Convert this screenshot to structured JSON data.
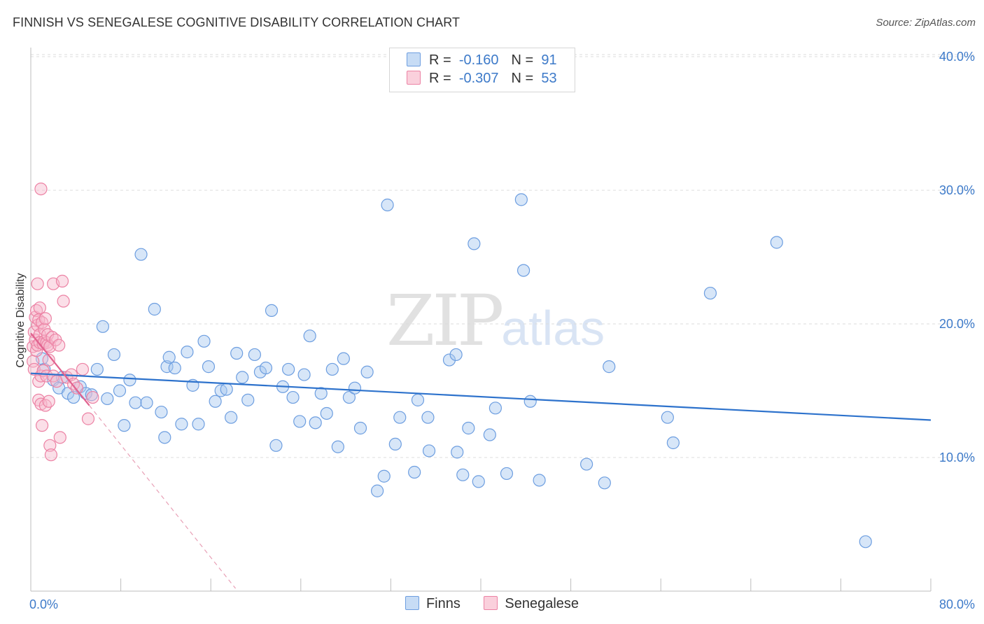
{
  "header": {
    "title": "FINNISH VS SENEGALESE COGNITIVE DISABILITY CORRELATION CHART",
    "source": "Source: ZipAtlas.com"
  },
  "watermark": {
    "zip": "ZIP",
    "atlas": "atlas"
  },
  "legend": {
    "rows": [
      {
        "r_label": "R =",
        "r_value": "-0.160",
        "n_label": "N =",
        "n_value": "91",
        "color": "#a7c8f0",
        "stroke": "#6d9ee0"
      },
      {
        "r_label": "R =",
        "r_value": "-0.307",
        "n_label": "N =",
        "n_value": "53",
        "color": "#f7b8cb",
        "stroke": "#ec82a4"
      }
    ]
  },
  "bottom_legend": {
    "items": [
      "Finns",
      "Senegalese"
    ]
  },
  "chart_data": {
    "type": "scatter",
    "title": "FINNISH VS SENEGALESE COGNITIVE DISABILITY CORRELATION CHART",
    "xlabel": "",
    "ylabel": "Cognitive Disability",
    "xlim": [
      0,
      80
    ],
    "ylim": [
      0,
      42
    ],
    "x_tick_labels": [
      "0.0%",
      "80.0%"
    ],
    "y_ticks": [
      10,
      20,
      30,
      40
    ],
    "y_tick_labels": [
      "10.0%",
      "20.0%",
      "30.0%",
      "40.0%"
    ],
    "grid": true,
    "series": [
      {
        "name": "Finns",
        "color": "#a7c8f0",
        "stroke": "#6d9ee0",
        "trend": {
          "x": [
            0,
            80
          ],
          "y": [
            16.3,
            12.8
          ],
          "color": "#2d72cc"
        },
        "points": [
          [
            1.0,
            17.4
          ],
          [
            1.2,
            16.6
          ],
          [
            2.0,
            15.8
          ],
          [
            2.5,
            15.2
          ],
          [
            2.8,
            16.0
          ],
          [
            3.3,
            14.8
          ],
          [
            3.8,
            14.5
          ],
          [
            4.4,
            15.3
          ],
          [
            4.9,
            14.8
          ],
          [
            5.4,
            14.7
          ],
          [
            5.9,
            16.6
          ],
          [
            6.4,
            19.8
          ],
          [
            6.8,
            14.4
          ],
          [
            7.4,
            17.7
          ],
          [
            7.9,
            15.0
          ],
          [
            8.3,
            12.4
          ],
          [
            8.8,
            15.8
          ],
          [
            9.3,
            14.1
          ],
          [
            9.8,
            25.2
          ],
          [
            10.3,
            14.1
          ],
          [
            11.0,
            21.1
          ],
          [
            11.6,
            13.4
          ],
          [
            11.9,
            11.5
          ],
          [
            12.1,
            16.8
          ],
          [
            12.3,
            17.5
          ],
          [
            12.8,
            16.7
          ],
          [
            13.4,
            12.5
          ],
          [
            13.9,
            17.9
          ],
          [
            14.4,
            15.4
          ],
          [
            14.9,
            12.5
          ],
          [
            15.4,
            18.7
          ],
          [
            15.8,
            16.8
          ],
          [
            16.4,
            14.2
          ],
          [
            16.9,
            15.0
          ],
          [
            17.4,
            15.1
          ],
          [
            17.8,
            13.0
          ],
          [
            18.3,
            17.8
          ],
          [
            18.8,
            16.0
          ],
          [
            19.3,
            14.3
          ],
          [
            19.9,
            17.7
          ],
          [
            20.4,
            16.4
          ],
          [
            20.9,
            16.7
          ],
          [
            21.4,
            21.0
          ],
          [
            21.8,
            10.9
          ],
          [
            22.4,
            15.3
          ],
          [
            22.9,
            16.6
          ],
          [
            23.3,
            14.5
          ],
          [
            23.9,
            12.7
          ],
          [
            24.3,
            16.2
          ],
          [
            24.8,
            19.1
          ],
          [
            25.3,
            12.6
          ],
          [
            25.8,
            14.8
          ],
          [
            26.3,
            13.3
          ],
          [
            26.8,
            16.6
          ],
          [
            27.3,
            10.8
          ],
          [
            27.8,
            17.4
          ],
          [
            28.3,
            14.5
          ],
          [
            28.8,
            15.2
          ],
          [
            29.3,
            12.2
          ],
          [
            29.9,
            16.4
          ],
          [
            30.8,
            7.5
          ],
          [
            31.4,
            8.6
          ],
          [
            31.7,
            28.9
          ],
          [
            32.4,
            11.0
          ],
          [
            32.8,
            13.0
          ],
          [
            34.1,
            8.9
          ],
          [
            34.4,
            14.3
          ],
          [
            35.3,
            13.0
          ],
          [
            35.4,
            10.5
          ],
          [
            37.2,
            17.3
          ],
          [
            37.8,
            17.7
          ],
          [
            37.9,
            10.4
          ],
          [
            38.4,
            8.7
          ],
          [
            38.9,
            12.2
          ],
          [
            39.4,
            26.0
          ],
          [
            39.8,
            8.2
          ],
          [
            40.8,
            11.7
          ],
          [
            41.3,
            13.7
          ],
          [
            42.3,
            8.8
          ],
          [
            43.6,
            29.3
          ],
          [
            43.8,
            24.0
          ],
          [
            44.4,
            14.2
          ],
          [
            45.2,
            8.3
          ],
          [
            49.4,
            9.5
          ],
          [
            51.0,
            8.1
          ],
          [
            51.4,
            16.8
          ],
          [
            56.6,
            13.0
          ],
          [
            57.1,
            11.1
          ],
          [
            60.4,
            22.3
          ],
          [
            66.3,
            26.1
          ],
          [
            74.2,
            3.7
          ]
        ]
      },
      {
        "name": "Senegalese",
        "color": "#f7b8cb",
        "stroke": "#ec82a4",
        "trend": {
          "x": [
            0,
            5.2
          ],
          "y": [
            19.3,
            13.9
          ],
          "color": "#e1628f"
        },
        "trend_ext": {
          "x": [
            5.2,
            18.2
          ],
          "y": [
            13.9,
            0.2
          ],
          "color": "#e8a0b6"
        },
        "points": [
          [
            0.2,
            18.3
          ],
          [
            0.2,
            17.2
          ],
          [
            0.3,
            19.4
          ],
          [
            0.3,
            16.6
          ],
          [
            0.4,
            18.8
          ],
          [
            0.4,
            20.5
          ],
          [
            0.5,
            18.0
          ],
          [
            0.5,
            21.0
          ],
          [
            0.6,
            19.9
          ],
          [
            0.6,
            18.4
          ],
          [
            0.6,
            23.0
          ],
          [
            0.7,
            20.3
          ],
          [
            0.7,
            15.7
          ],
          [
            0.7,
            14.3
          ],
          [
            0.8,
            21.2
          ],
          [
            0.8,
            19.2
          ],
          [
            0.8,
            18.6
          ],
          [
            0.9,
            16.1
          ],
          [
            0.9,
            30.1
          ],
          [
            0.9,
            14.0
          ],
          [
            1.0,
            20.1
          ],
          [
            1.0,
            12.4
          ],
          [
            1.1,
            18.5
          ],
          [
            1.1,
            16.5
          ],
          [
            1.2,
            19.6
          ],
          [
            1.2,
            18.7
          ],
          [
            1.3,
            20.4
          ],
          [
            1.3,
            13.9
          ],
          [
            1.4,
            18.6
          ],
          [
            1.4,
            16.1
          ],
          [
            1.5,
            18.4
          ],
          [
            1.5,
            19.2
          ],
          [
            1.6,
            17.3
          ],
          [
            1.6,
            14.2
          ],
          [
            1.7,
            18.3
          ],
          [
            1.7,
            10.9
          ],
          [
            1.8,
            10.2
          ],
          [
            1.9,
            19.0
          ],
          [
            2.0,
            16.1
          ],
          [
            2.0,
            23.0
          ],
          [
            2.2,
            18.8
          ],
          [
            2.3,
            15.7
          ],
          [
            2.5,
            18.4
          ],
          [
            2.6,
            11.5
          ],
          [
            2.8,
            23.2
          ],
          [
            2.9,
            21.7
          ],
          [
            3.2,
            16.0
          ],
          [
            3.6,
            16.2
          ],
          [
            3.8,
            15.5
          ],
          [
            4.1,
            15.2
          ],
          [
            4.6,
            16.6
          ],
          [
            5.1,
            12.9
          ],
          [
            5.5,
            14.5
          ]
        ]
      }
    ]
  }
}
